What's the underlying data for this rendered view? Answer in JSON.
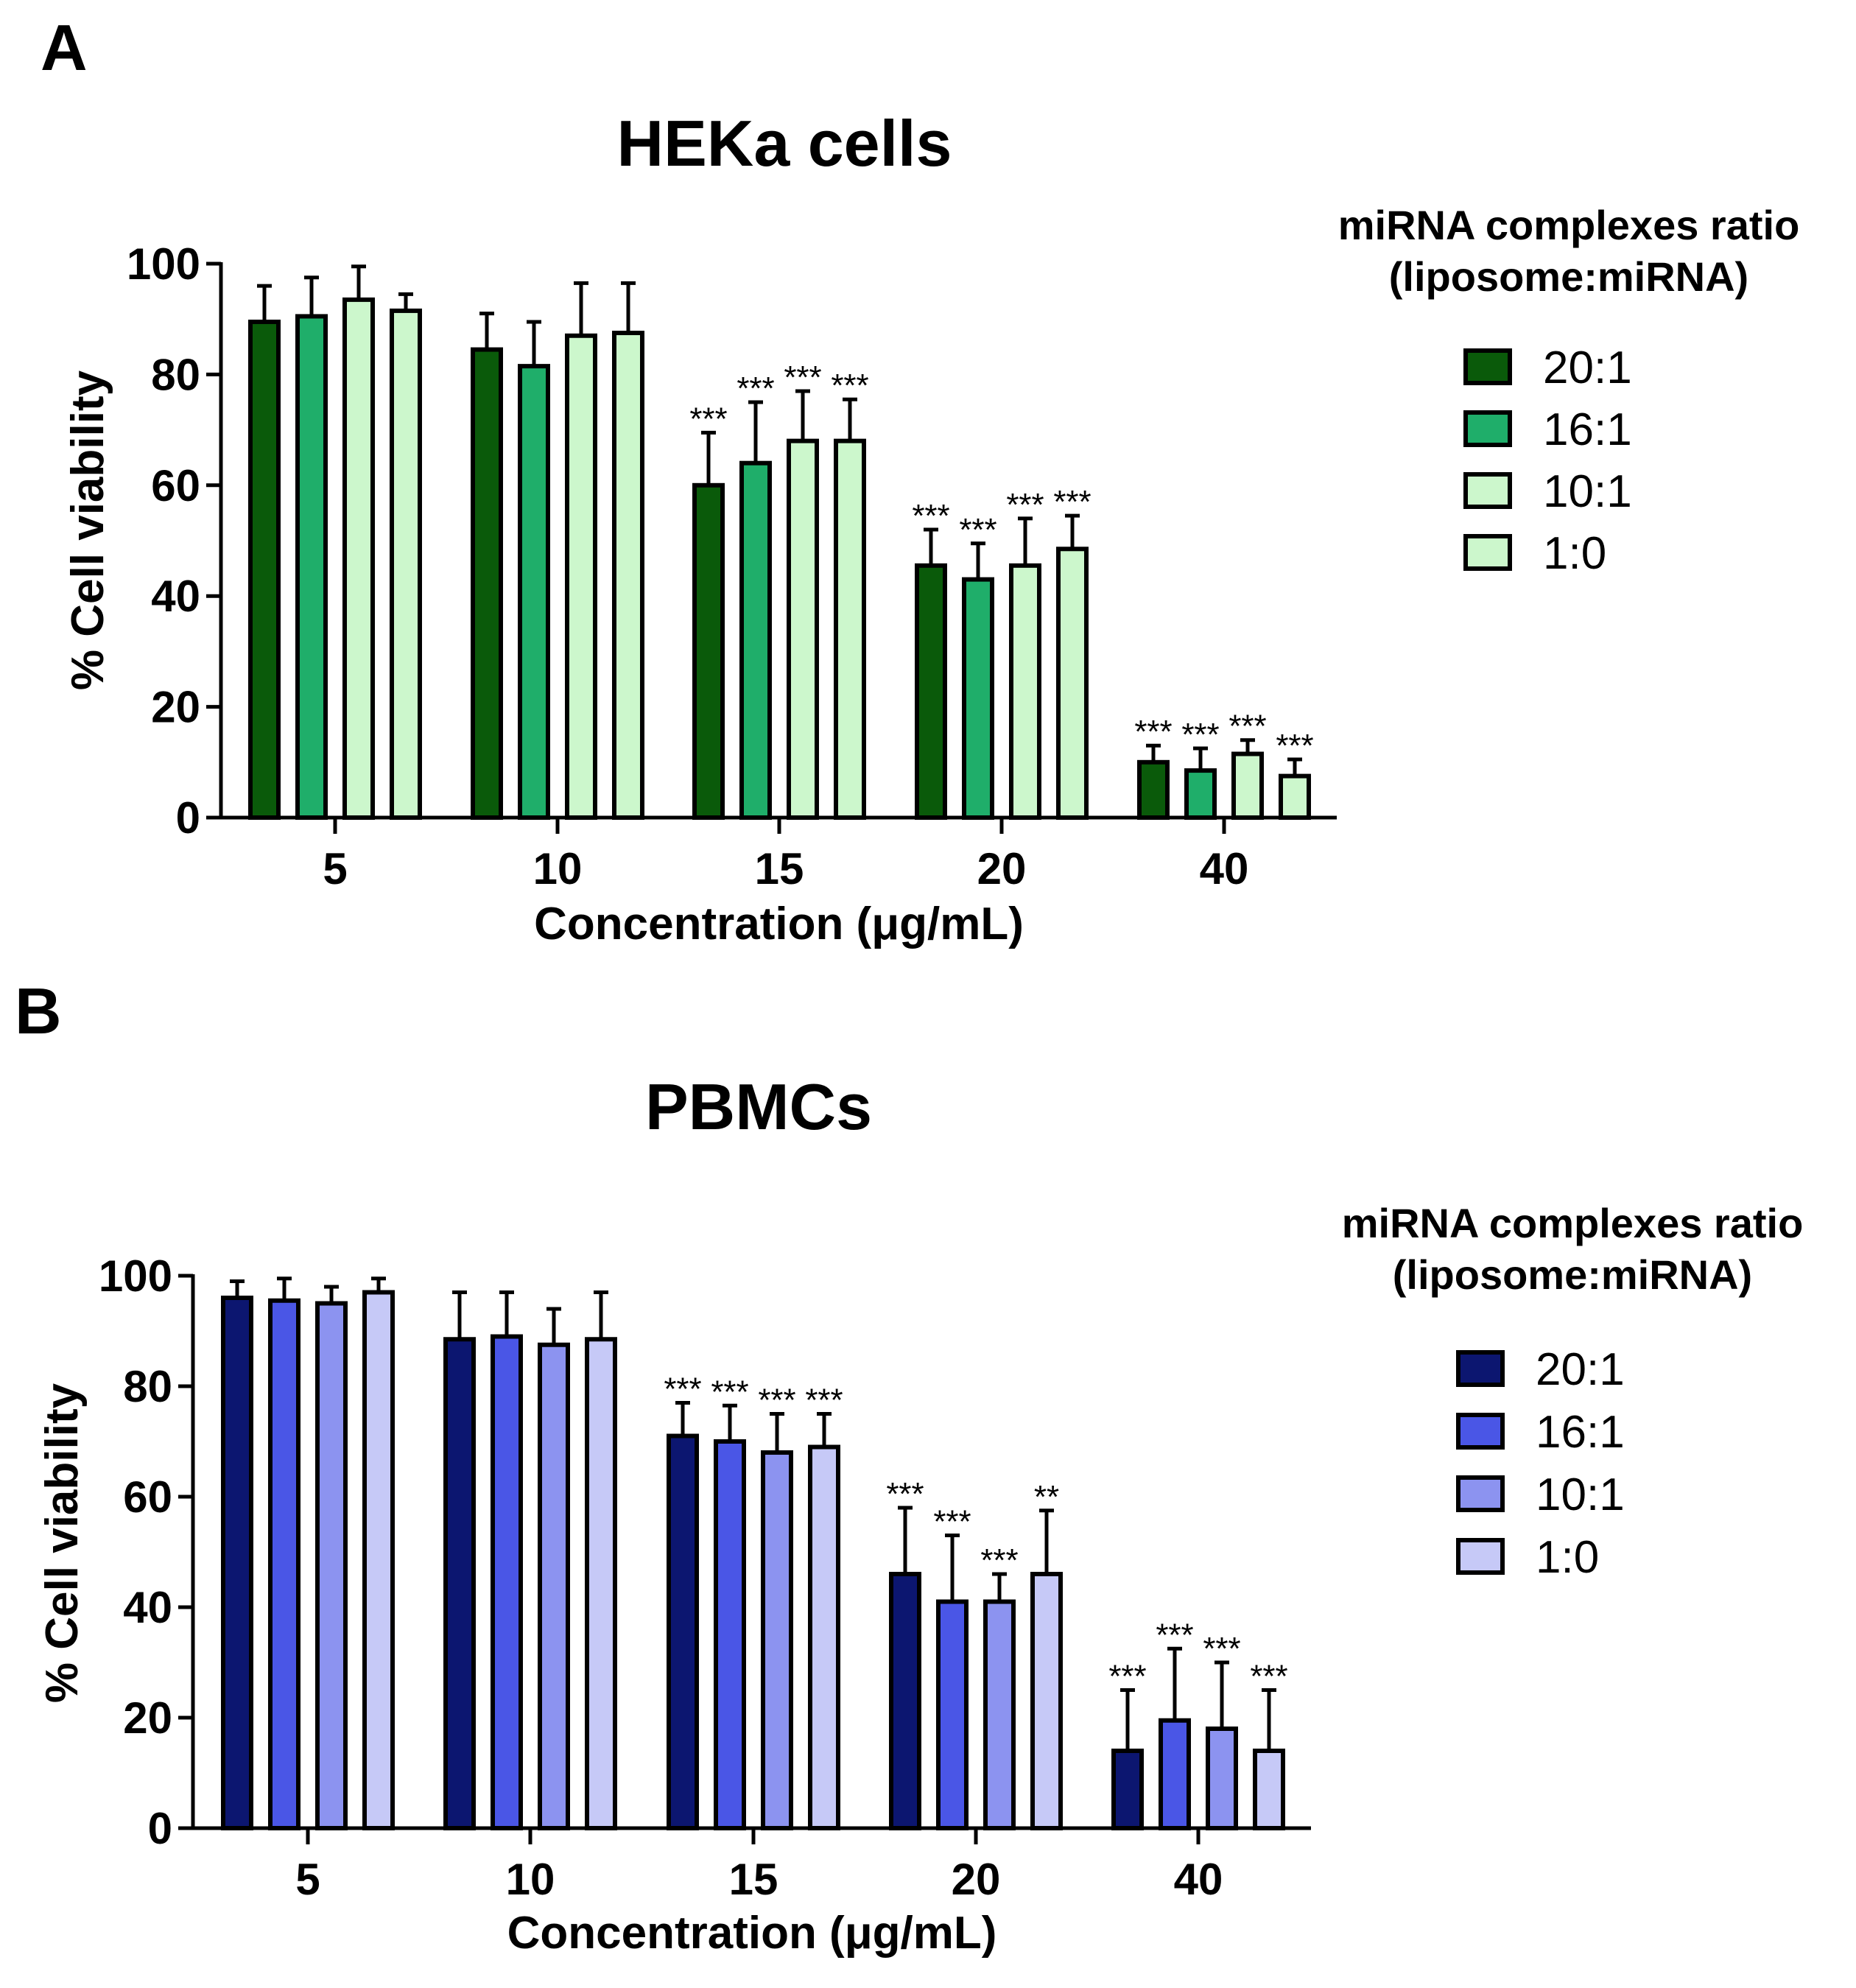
{
  "chart_data": [
    {
      "panel": "A",
      "type": "bar",
      "title": "HEKa cells",
      "xlabel": "Concentration (μg/mL)",
      "ylabel": "% Cell viability",
      "ylim": [
        0,
        100
      ],
      "yticks": [
        0,
        20,
        40,
        60,
        80,
        100
      ],
      "categories": [
        "5",
        "10",
        "15",
        "20",
        "40"
      ],
      "legend_title": [
        "miRNA complexes ratio",
        "(liposome:miRNA)"
      ],
      "legend_position": "right",
      "series": [
        {
          "name": "20:1",
          "color": "#0a5a0a",
          "values": [
            89.5,
            84.5,
            60,
            45.5,
            10
          ],
          "errors": [
            6.5,
            6.5,
            9.5,
            6.5,
            3
          ],
          "sig": [
            "",
            "",
            "***",
            "***",
            "***"
          ]
        },
        {
          "name": "16:1",
          "color": "#1fae6a",
          "values": [
            90.5,
            81.5,
            64,
            43,
            8.5
          ],
          "errors": [
            7,
            8,
            11,
            6.5,
            4
          ],
          "sig": [
            "",
            "",
            "***",
            "***",
            "***"
          ]
        },
        {
          "name": "10:1",
          "color": "#ccf7cc",
          "values": [
            93.5,
            87,
            68,
            45.5,
            11.5
          ],
          "errors": [
            6,
            9.5,
            9,
            8.5,
            2.5
          ],
          "sig": [
            "",
            "",
            "***",
            "***",
            "***"
          ]
        },
        {
          "name": "1:0",
          "color": "#ccf7cc",
          "values": [
            91.5,
            87.5,
            68,
            48.5,
            7.5
          ],
          "errors": [
            3,
            9,
            7.5,
            6,
            3
          ],
          "sig": [
            "",
            "",
            "***",
            "***",
            "***"
          ]
        }
      ]
    },
    {
      "panel": "B",
      "type": "bar",
      "title": "PBMCs",
      "xlabel": "Concentration (μg/mL)",
      "ylabel": "% Cell viability",
      "ylim": [
        0,
        100
      ],
      "yticks": [
        0,
        20,
        40,
        60,
        80,
        100
      ],
      "categories": [
        "5",
        "10",
        "15",
        "20",
        "40"
      ],
      "legend_title": [
        "miRNA complexes ratio",
        "(liposome:miRNA)"
      ],
      "legend_position": "right",
      "series": [
        {
          "name": "20:1",
          "color": "#0c1670",
          "values": [
            96,
            88.5,
            71,
            46,
            14
          ],
          "errors": [
            3,
            8.5,
            6,
            12,
            11
          ],
          "sig": [
            "",
            "",
            "***",
            "***",
            "***"
          ]
        },
        {
          "name": "16:1",
          "color": "#4a56e6",
          "values": [
            95.5,
            89,
            70,
            41,
            19.5
          ],
          "errors": [
            4,
            8,
            6.5,
            12,
            13
          ],
          "sig": [
            "",
            "",
            "***",
            "***",
            "***"
          ]
        },
        {
          "name": "10:1",
          "color": "#8c93f0",
          "values": [
            95,
            87.5,
            68,
            41,
            18
          ],
          "errors": [
            3,
            6.5,
            7,
            5,
            12
          ],
          "sig": [
            "",
            "",
            "***",
            "***",
            "***"
          ]
        },
        {
          "name": "1:0",
          "color": "#c6c9f7",
          "values": [
            97,
            88.5,
            69,
            46,
            14
          ],
          "errors": [
            2.5,
            8.5,
            6,
            11.5,
            11
          ],
          "sig": [
            "",
            "",
            "***",
            "**",
            "***"
          ]
        }
      ]
    }
  ]
}
